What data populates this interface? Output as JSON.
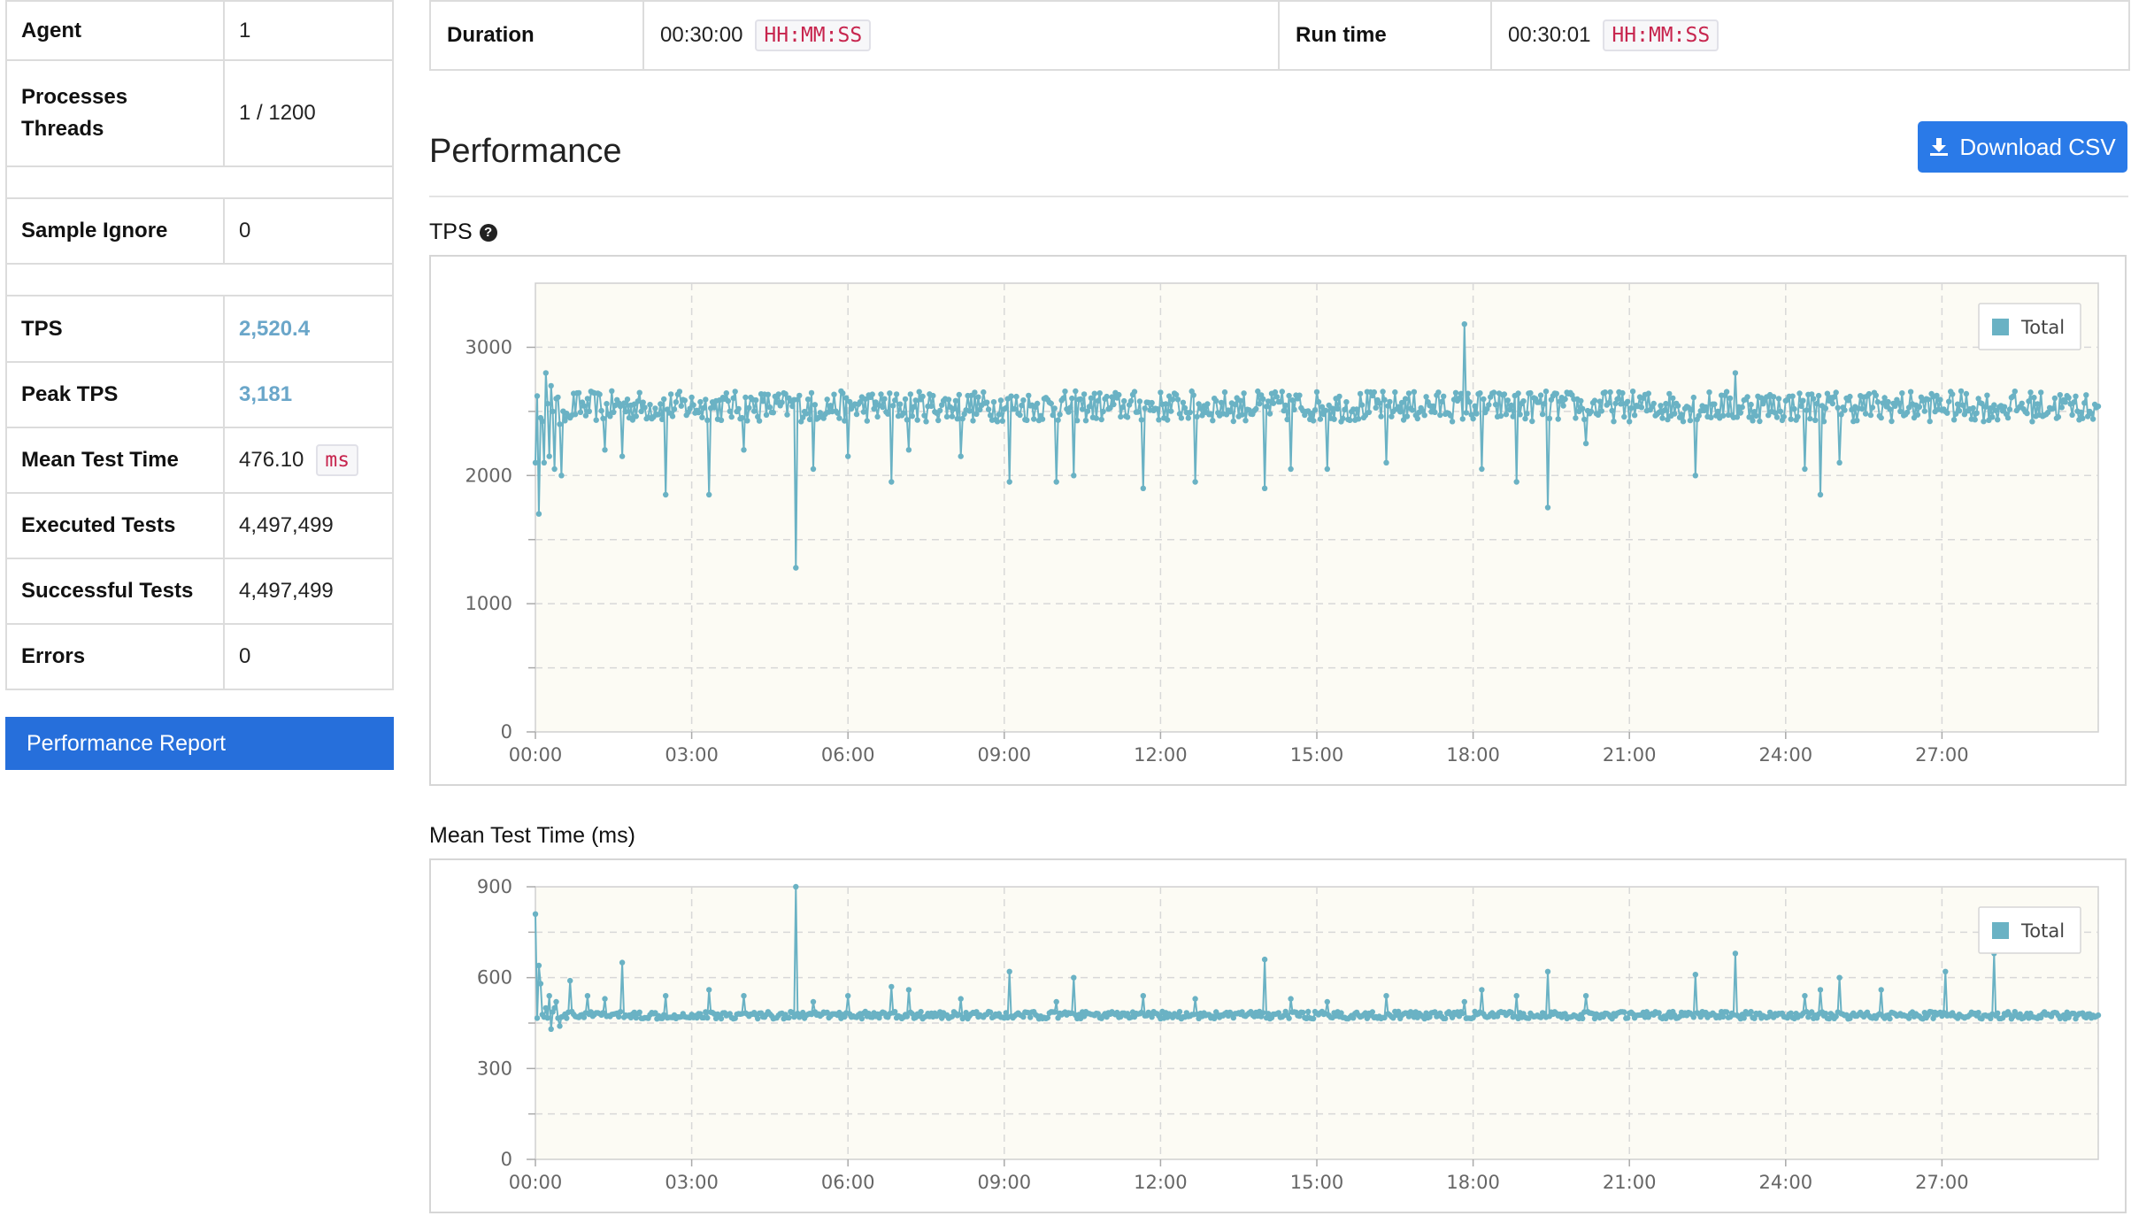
{
  "summary": {
    "rows": [
      {
        "key": "Agent",
        "value": "1"
      },
      {
        "key": "Processes\nThreads",
        "value": "1 / 1200"
      },
      {
        "key": "Sample Ignore",
        "value": "0"
      },
      {
        "key": "TPS",
        "value": "2,520.4"
      },
      {
        "key": "Peak TPS",
        "value": "3,181"
      },
      {
        "key": "Mean Test Time",
        "value": "476.10",
        "unit": "ms"
      },
      {
        "key": "Executed Tests",
        "value": "4,497,499"
      },
      {
        "key": "Successful Tests",
        "value": "4,497,499"
      },
      {
        "key": "Errors",
        "value": "0"
      }
    ],
    "report_button": "Performance Report"
  },
  "run_info": {
    "duration_label": "Duration",
    "duration_value": "00:30:00",
    "duration_format": "HH:MM:SS",
    "runtime_label": "Run time",
    "runtime_value": "00:30:01",
    "runtime_format": "HH:MM:SS"
  },
  "performance": {
    "title": "Performance",
    "download_label": "Download CSV",
    "download_icon": "download-icon",
    "help_icon": "question-circle-icon"
  },
  "colors": {
    "series": "#6ab2c4",
    "plot_bg": "#fcfbf4",
    "button_blue": "#266fdb",
    "stat_blue": "#6aa6c9",
    "unit_red": "#c7254e"
  },
  "chart_data": [
    {
      "type": "line",
      "title": "TPS",
      "xlabel": "",
      "ylabel": "",
      "x_range": [
        0,
        1800
      ],
      "x_ticks": [
        "00:00",
        "03:00",
        "06:00",
        "09:00",
        "12:00",
        "15:00",
        "18:00",
        "21:00",
        "24:00",
        "27:00"
      ],
      "y_ticks": [
        "0",
        "1000",
        "2000",
        "3000"
      ],
      "ylim": [
        0,
        3500
      ],
      "legend": "top-right",
      "grid": true,
      "series": [
        {
          "name": "Total",
          "baseline": 2540,
          "x": [
            0,
            3,
            6,
            9,
            12,
            15,
            18,
            21,
            24,
            27,
            30,
            40,
            60,
            80,
            100,
            150,
            200,
            240,
            300,
            320,
            360,
            410,
            430,
            490,
            545,
            600,
            620,
            700,
            760,
            840,
            870,
            912,
            980,
            1070,
            1090,
            1130,
            1165,
            1210,
            1335,
            1381,
            1461,
            1479,
            1501,
            1550,
            1624,
            1680,
            1790,
            1800
          ],
          "y": [
            2100,
            1700,
            2450,
            2100,
            2800,
            2150,
            2700,
            2050,
            2600,
            2400,
            2000,
            2450,
            2600,
            2200,
            2150,
            1850,
            1850,
            2200,
            1280,
            2050,
            2150,
            1950,
            2200,
            2150,
            1950,
            1950,
            2000,
            1900,
            1950,
            1900,
            2050,
            2050,
            2100,
            3181,
            2050,
            1950,
            1750,
            2250,
            2000,
            2800,
            2050,
            1850,
            2100,
            2450,
            2500,
            2550,
            2500,
            2540
          ]
        }
      ]
    },
    {
      "type": "line",
      "title": "Mean Test Time (ms)",
      "xlabel": "",
      "ylabel": "",
      "x_range": [
        0,
        1800
      ],
      "x_ticks": [
        "00:00",
        "03:00",
        "06:00",
        "09:00",
        "12:00",
        "15:00",
        "18:00",
        "21:00",
        "24:00",
        "27:00"
      ],
      "y_ticks": [
        "0",
        "300",
        "600",
        "900"
      ],
      "ylim": [
        0,
        900
      ],
      "legend": "top-right",
      "grid": true,
      "series": [
        {
          "name": "Total",
          "baseline": 476,
          "x": [
            0,
            3,
            6,
            9,
            12,
            15,
            18,
            21,
            24,
            27,
            30,
            40,
            60,
            80,
            100,
            150,
            200,
            240,
            300,
            320,
            360,
            410,
            430,
            490,
            545,
            600,
            620,
            700,
            760,
            840,
            870,
            912,
            980,
            1070,
            1090,
            1130,
            1165,
            1210,
            1335,
            1381,
            1461,
            1479,
            1501,
            1550,
            1624,
            1680,
            1790,
            1800
          ],
          "y": [
            810,
            640,
            580,
            470,
            500,
            540,
            430,
            500,
            520,
            440,
            470,
            590,
            540,
            530,
            650,
            540,
            560,
            540,
            900,
            520,
            540,
            570,
            560,
            530,
            620,
            520,
            600,
            540,
            530,
            660,
            530,
            520,
            540,
            520,
            560,
            540,
            620,
            540,
            610,
            680,
            540,
            560,
            600,
            560,
            620,
            680,
            480,
            476
          ]
        }
      ]
    }
  ]
}
